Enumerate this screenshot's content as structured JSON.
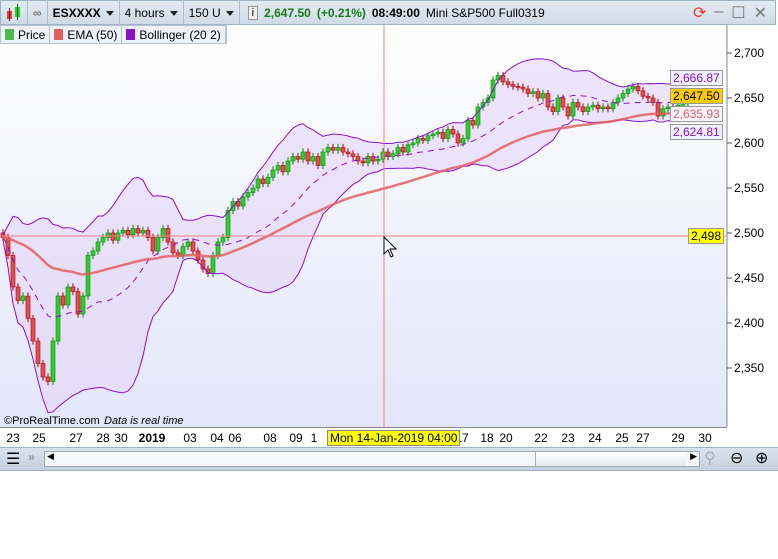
{
  "toolbar": {
    "symbol": "ESXXXX",
    "timeframe": "4 hours",
    "units": "150 U",
    "price": "2,647.50",
    "change": "(+0.21%)",
    "time": "08:49:00",
    "instrument": "Mini S&P500 Full0319"
  },
  "legend": [
    {
      "label": "Price",
      "color": "#4cbb4c"
    },
    {
      "label": "EMA (50)",
      "color": "#e06060"
    },
    {
      "label": "Bollinger (20 2)",
      "color": "#8a10c8"
    }
  ],
  "footer": {
    "copyright": "©ProRealTime.com",
    "realtime": "Data is real time"
  },
  "crosshair": {
    "date": "Mon 14-Jan-2019 04:00",
    "price": "2,498"
  },
  "price_labels": {
    "bb_upper": "2,666.87",
    "last": "2,647.50",
    "ema": "2,635.93",
    "bb_lower": "2,624.81"
  },
  "colors": {
    "up": "#33cc33",
    "down": "#e05050",
    "ema": "#e06060",
    "bollinger": "#8a10c8",
    "band_fill": "#e4d6f8",
    "last": "#ffcc00"
  },
  "chart_data": {
    "type": "candlestick",
    "y_ticks": [
      "2,700",
      "2,650",
      "2,600",
      "2,550",
      "2,500",
      "2,450",
      "2,400",
      "2,350"
    ],
    "y_tick_values": [
      2700,
      2650,
      2600,
      2550,
      2500,
      2450,
      2400,
      2350
    ],
    "x_labels": [
      "23",
      "25",
      "27",
      "28",
      "30",
      "2019",
      "03",
      "04",
      "06",
      "08",
      "09",
      "1",
      "17",
      "18",
      "20",
      "22",
      "23",
      "24",
      "25",
      "27",
      "29",
      "30"
    ],
    "indicators": [
      "EMA (50)",
      "Bollinger (20 2)"
    ],
    "close": [
      2495,
      2475,
      2440,
      2425,
      2430,
      2405,
      2380,
      2355,
      2340,
      2335,
      2380,
      2430,
      2420,
      2440,
      2435,
      2410,
      2430,
      2475,
      2480,
      2490,
      2495,
      2500,
      2492,
      2500,
      2503,
      2498,
      2505,
      2500,
      2503,
      2495,
      2480,
      2495,
      2505,
      2490,
      2478,
      2475,
      2485,
      2490,
      2480,
      2470,
      2460,
      2455,
      2475,
      2490,
      2495,
      2525,
      2535,
      2530,
      2540,
      2545,
      2550,
      2560,
      2555,
      2562,
      2570,
      2575,
      2568,
      2580,
      2585,
      2582,
      2590,
      2580,
      2585,
      2575,
      2590,
      2595,
      2592,
      2595,
      2590,
      2588,
      2585,
      2580,
      2578,
      2585,
      2580,
      2582,
      2590,
      2585,
      2588,
      2595,
      2590,
      2598,
      2600,
      2605,
      2603,
      2608,
      2610,
      2612,
      2605,
      2615,
      2610,
      2600,
      2605,
      2625,
      2620,
      2640,
      2645,
      2650,
      2670,
      2675,
      2668,
      2665,
      2663,
      2662,
      2660,
      2655,
      2657,
      2650,
      2655,
      2640,
      2635,
      2650,
      2640,
      2630,
      2645,
      2640,
      2635,
      2640,
      2642,
      2638,
      2640,
      2638,
      2645,
      2650,
      2655,
      2660,
      2663,
      2658,
      2652,
      2650,
      2645,
      2630,
      2638,
      2640,
      2637,
      2642,
      2645,
      2647.5
    ]
  }
}
